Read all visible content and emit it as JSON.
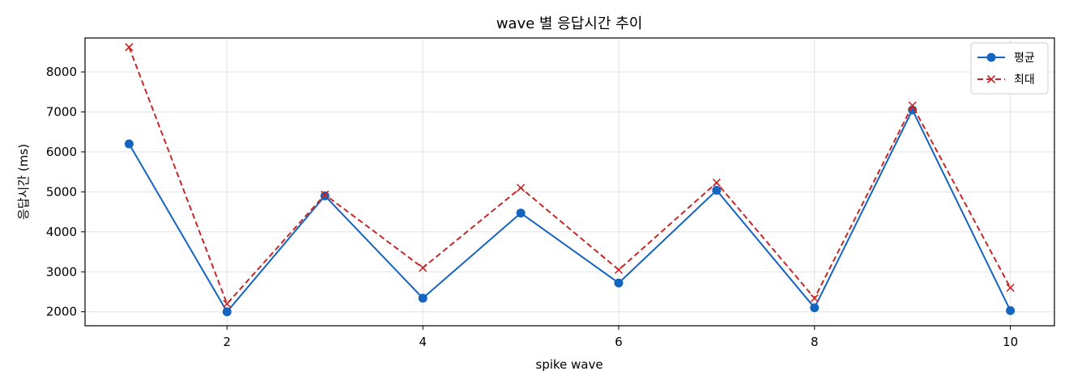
{
  "chart_data": {
    "type": "line",
    "title": "wave 별 응답시간 추이",
    "xlabel": "spike wave",
    "ylabel": "응답시간 (ms)",
    "x": [
      1,
      2,
      3,
      4,
      5,
      6,
      7,
      8,
      9,
      10
    ],
    "xlim": [
      0.55,
      10.45
    ],
    "ylim": [
      1650,
      8850
    ],
    "xticks": [
      2,
      4,
      6,
      8,
      10
    ],
    "yticks": [
      2000,
      3000,
      4000,
      5000,
      6000,
      7000,
      8000
    ],
    "grid": true,
    "legend_position": "top-right",
    "series": [
      {
        "name": "평균",
        "color": "#1565c0",
        "linestyle": "solid",
        "marker": "circle",
        "values": [
          6200,
          2000,
          4900,
          2340,
          4470,
          2720,
          5040,
          2100,
          7050,
          2030
        ]
      },
      {
        "name": "최대",
        "color": "#c62828",
        "linestyle": "dashed",
        "marker": "x",
        "values": [
          8620,
          2200,
          4930,
          3100,
          5100,
          3050,
          5230,
          2340,
          7160,
          2600
        ]
      }
    ]
  }
}
